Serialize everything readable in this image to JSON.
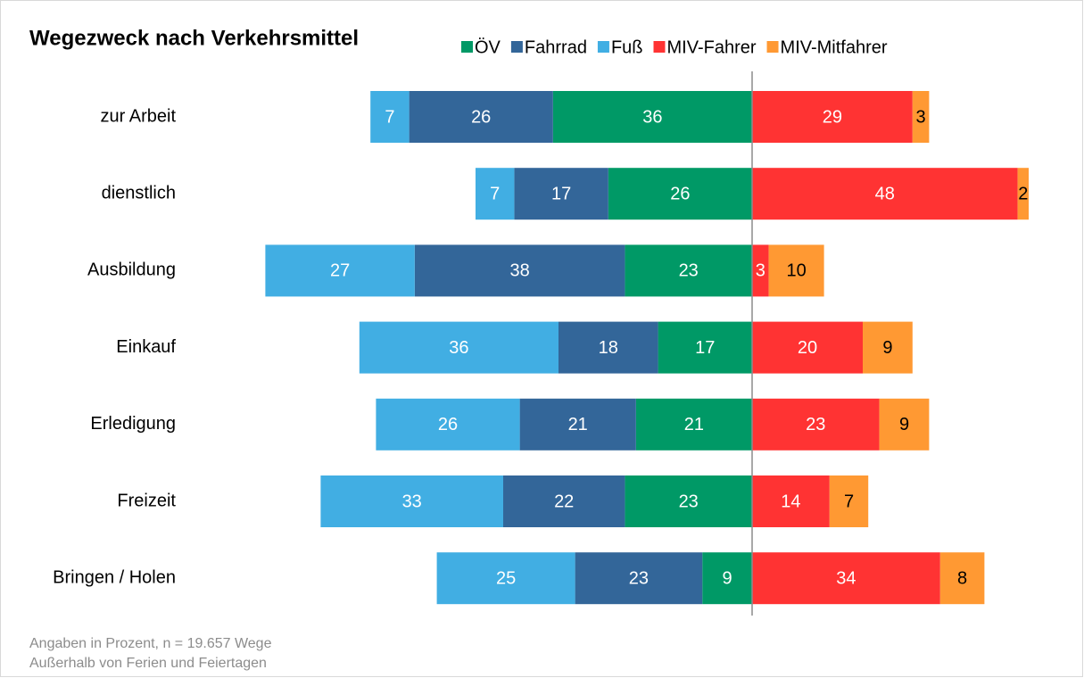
{
  "chart_data": {
    "type": "diverging_stacked_bar",
    "title": "Wegezweck nach Verkehrsmittel",
    "notes": [
      "Angaben in Prozent, n = 19.657 Wege",
      "Außerhalb von Ferien und Feiertagen"
    ],
    "categories": [
      "zur Arbeit",
      "dienstlich",
      "Ausbildung",
      "Einkauf",
      "Erledigung",
      "Freizeit",
      "Bringen / Holen"
    ],
    "series": [
      {
        "name": "ÖV",
        "color": "#009966",
        "label_color": "#ffffff",
        "side": "left",
        "values": [
          36,
          26,
          23,
          17,
          21,
          23,
          9
        ]
      },
      {
        "name": "Fahrrad",
        "color": "#336699",
        "label_color": "#ffffff",
        "side": "left",
        "values": [
          26,
          17,
          38,
          18,
          21,
          22,
          23
        ]
      },
      {
        "name": "Fuß",
        "color": "#41aee3",
        "label_color": "#ffffff",
        "side": "left",
        "values": [
          7,
          7,
          27,
          36,
          26,
          33,
          25
        ]
      },
      {
        "name": "MIV-Fahrer",
        "color": "#ff3333",
        "label_color": "#ffffff",
        "side": "right",
        "values": [
          29,
          48,
          3,
          20,
          23,
          14,
          34
        ]
      },
      {
        "name": "MIV-Mitfahrer",
        "color": "#ff9933",
        "label_color": "#000000",
        "side": "right",
        "values": [
          3,
          2,
          10,
          9,
          9,
          7,
          8
        ]
      }
    ],
    "legend": "top"
  }
}
